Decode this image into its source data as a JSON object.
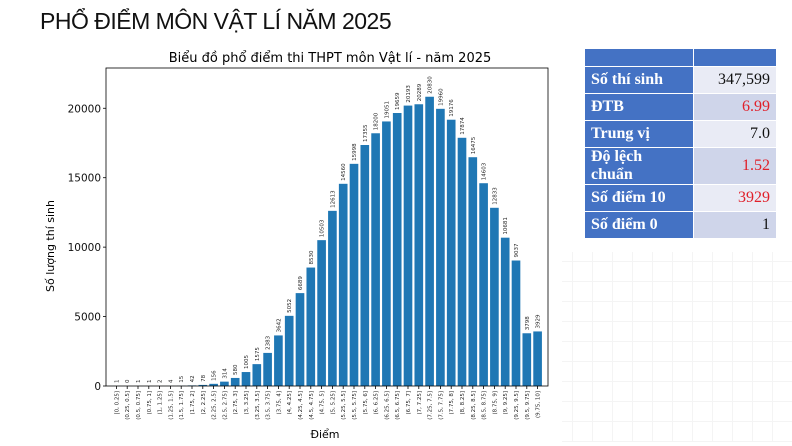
{
  "page_title": "PHỔ ĐIỂM MÔN VẬT LÍ NĂM 2025",
  "stats": [
    {
      "label": "Số thí sinh",
      "value": "347,599",
      "color": "#111111"
    },
    {
      "label": "ĐTB",
      "value": "6.99",
      "color": "#e0202a"
    },
    {
      "label": "Trung vị",
      "value": "7.0",
      "color": "#111111"
    },
    {
      "label": "Độ lệch chuẩn",
      "value": "1.52",
      "color": "#e0202a"
    },
    {
      "label": "Số điểm 10",
      "value": "3929",
      "color": "#e0202a"
    },
    {
      "label": "Số điểm 0",
      "value": "1",
      "color": "#111111"
    }
  ],
  "chart_data": {
    "type": "bar",
    "title": "Biểu đồ phổ điểm thi THPT môn Vật lí - năm 2025",
    "xlabel": "Điểm",
    "ylabel": "Số lượng thí sinh",
    "ylim": [
      0,
      22900
    ],
    "yticks": [
      0,
      5000,
      10000,
      15000,
      20000
    ],
    "bar_color": "#1f77b4",
    "grid": false,
    "categories": [
      "[0, 0.25]",
      "(0.25, 0.5]",
      "(0.5, 0.75]",
      "(0.75, 1]",
      "(1, 1.25]",
      "(1.25, 1.5]",
      "(1.5, 1.75]",
      "(1.75, 2]",
      "(2, 2.25]",
      "(2.25, 2.5]",
      "(2.5, 2.75]",
      "(2.75, 3]",
      "(3, 3.25]",
      "(3.25, 3.5]",
      "(3.5, 3.75]",
      "(3.75, 4]",
      "(4, 4.25]",
      "(4.25, 4.5]",
      "(4.5, 4.75]",
      "(4.75, 5]",
      "(5, 5.25]",
      "(5.25, 5.5]",
      "(5.5, 5.75]",
      "(5.75, 6]",
      "(6, 6.25]",
      "(6.25, 6.5]",
      "(6.5, 6.75]",
      "(6.75, 7]",
      "(7, 7.25]",
      "(7.25, 7.5]",
      "(7.5, 7.75]",
      "(7.75, 8]",
      "(8, 8.25]",
      "(8.25, 8.5]",
      "(8.5, 8.75]",
      "(8.75, 9]",
      "(9, 9.25]",
      "(9.25, 9.5]",
      "(9.5, 9.75]",
      "(9.75, 10]"
    ],
    "values": [
      1,
      0,
      1,
      1,
      2,
      4,
      15,
      42,
      78,
      156,
      314,
      580,
      1005,
      1575,
      2383,
      3642,
      5052,
      6689,
      8530,
      10503,
      12613,
      14560,
      15998,
      17355,
      18200,
      19051,
      19659,
      20193,
      20289,
      20830,
      19960,
      19176,
      17874,
      16475,
      14603,
      12833,
      10681,
      9037,
      3798,
      3929
    ]
  }
}
